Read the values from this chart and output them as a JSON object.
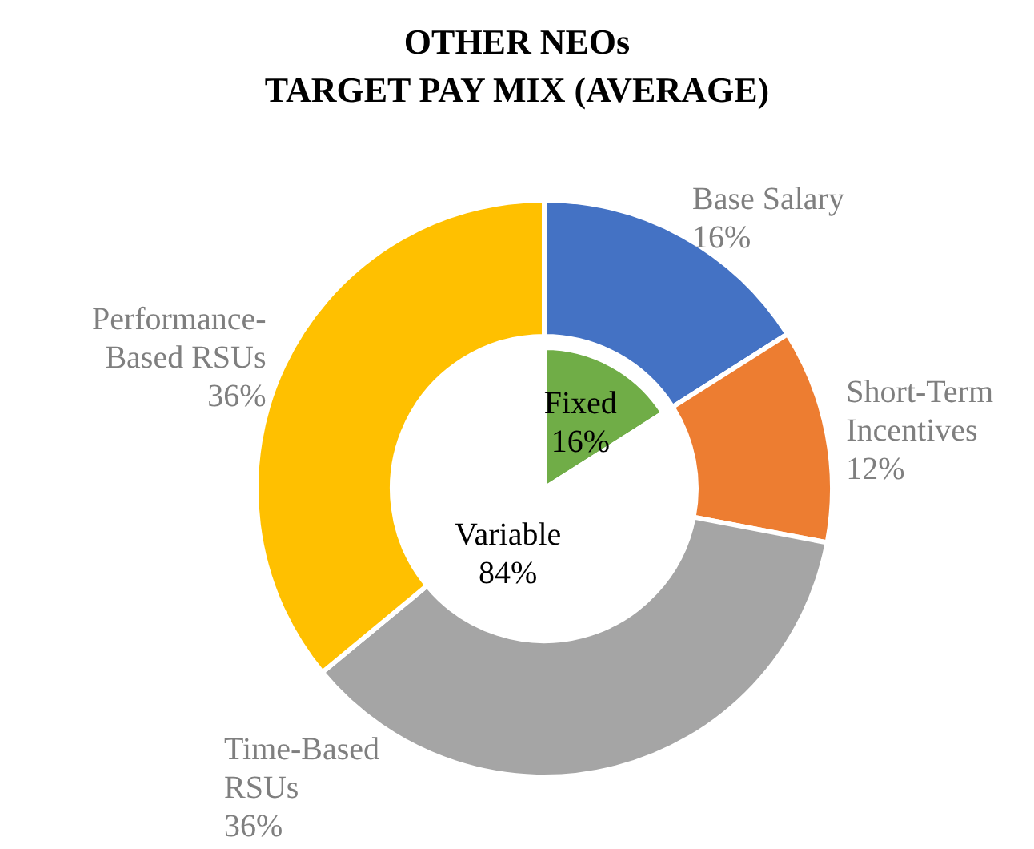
{
  "chart_data": [
    {
      "type": "donut",
      "title": "OTHER NEOs\nTARGET PAY MIX (AVERAGE)",
      "categories": [
        "Base Salary",
        "Short-Term\nIncentives",
        "Time-Based\nRSUs",
        "Performance-\nBased RSUs"
      ],
      "values": [
        16,
        12,
        36,
        36
      ],
      "value_labels": [
        "16%",
        "12%",
        "36%",
        "36%"
      ],
      "colors": [
        "#4472c4",
        "#ed7d31",
        "#a5a5a5",
        "#ffc000"
      ]
    },
    {
      "type": "pie",
      "categories": [
        "Fixed",
        "Variable"
      ],
      "values": [
        16,
        84
      ],
      "value_labels": [
        "16%",
        "84%"
      ],
      "colors": [
        "#70ad47",
        "#ffffff"
      ]
    }
  ]
}
